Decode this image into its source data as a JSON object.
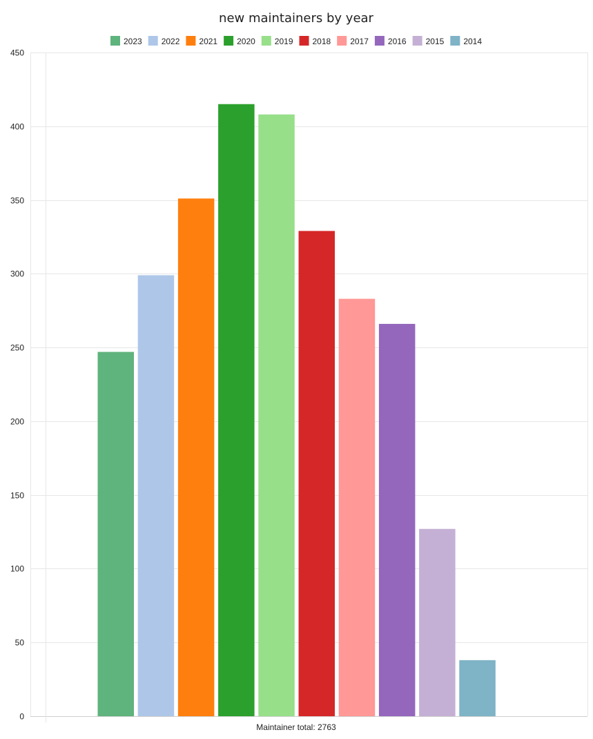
{
  "chart_data": {
    "type": "bar",
    "title": "new maintainers by year",
    "categories": [
      "Maintainer total: 2763"
    ],
    "series": [
      {
        "name": "2023",
        "values": [
          247
        ],
        "color": "#5fb37c"
      },
      {
        "name": "2022",
        "values": [
          299
        ],
        "color": "#aec7e8"
      },
      {
        "name": "2021",
        "values": [
          351
        ],
        "color": "#ff7f0e"
      },
      {
        "name": "2020",
        "values": [
          415
        ],
        "color": "#2ca02c"
      },
      {
        "name": "2019",
        "values": [
          408
        ],
        "color": "#98df8a"
      },
      {
        "name": "2018",
        "values": [
          329
        ],
        "color": "#d62728"
      },
      {
        "name": "2017",
        "values": [
          283
        ],
        "color": "#ff9896"
      },
      {
        "name": "2016",
        "values": [
          266
        ],
        "color": "#9467bd"
      },
      {
        "name": "2015",
        "values": [
          127
        ],
        "color": "#c5b0d5"
      },
      {
        "name": "2014",
        "values": [
          38
        ],
        "color": "#7fb3c6"
      }
    ],
    "ylim": [
      0,
      450
    ],
    "yticks": [
      0,
      50,
      100,
      150,
      200,
      250,
      300,
      350,
      400,
      450
    ],
    "xlabel": "",
    "ylabel": "",
    "grid": true,
    "legend_position": "top"
  }
}
